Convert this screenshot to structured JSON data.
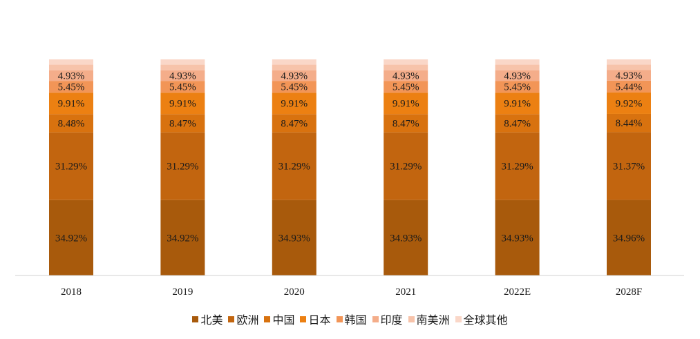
{
  "chart_data": {
    "type": "bar",
    "stacked": true,
    "categories": [
      "2018",
      "2019",
      "2020",
      "2021",
      "2022E",
      "2028F"
    ],
    "series": [
      {
        "name": "北美",
        "color": "#A85A0C",
        "values": [
          34.92,
          34.92,
          34.93,
          34.93,
          34.93,
          34.96
        ],
        "labels": [
          "34.92%",
          "34.92%",
          "34.93%",
          "34.93%",
          "34.93%",
          "34.96%"
        ]
      },
      {
        "name": "欧洲",
        "color": "#C2650F",
        "values": [
          31.29,
          31.29,
          31.29,
          31.29,
          31.29,
          31.37
        ],
        "labels": [
          "31.29%",
          "31.29%",
          "31.29%",
          "31.29%",
          "31.29%",
          "31.37%"
        ]
      },
      {
        "name": "中国",
        "color": "#D8720F",
        "values": [
          8.48,
          8.47,
          8.47,
          8.47,
          8.47,
          8.44
        ],
        "labels": [
          "8.48%",
          "8.47%",
          "8.47%",
          "8.47%",
          "8.47%",
          "8.44%"
        ]
      },
      {
        "name": "日本",
        "color": "#EC8012",
        "values": [
          9.91,
          9.91,
          9.91,
          9.91,
          9.91,
          9.92
        ],
        "labels": [
          "9.91%",
          "9.91%",
          "9.91%",
          "9.91%",
          "9.91%",
          "9.92%"
        ]
      },
      {
        "name": "韩国",
        "color": "#F29557",
        "values": [
          5.45,
          5.45,
          5.45,
          5.45,
          5.45,
          5.44
        ],
        "labels": [
          "5.45%",
          "5.45%",
          "5.45%",
          "5.45%",
          "5.45%",
          "5.44%"
        ]
      },
      {
        "name": "印度",
        "color": "#F4AD8A",
        "values": [
          4.93,
          4.93,
          4.93,
          4.93,
          4.93,
          4.93
        ],
        "labels": [
          "4.93%",
          "4.93%",
          "4.93%",
          "4.93%",
          "4.93%",
          "4.93%"
        ]
      },
      {
        "name": "南美洲",
        "color": "#F7C3AA",
        "values": [
          2.6,
          2.6,
          2.6,
          2.6,
          2.6,
          2.6
        ],
        "labels": [
          "",
          "",
          "",
          "",
          "",
          ""
        ]
      },
      {
        "name": "全球其他",
        "color": "#FAD7C8",
        "values": [
          2.42,
          2.43,
          2.42,
          2.42,
          2.42,
          2.34
        ],
        "labels": [
          "",
          "",
          "",
          "",
          "",
          ""
        ]
      }
    ],
    "ylim": [
      0,
      100
    ],
    "grid": false,
    "legend_position": "bottom"
  }
}
